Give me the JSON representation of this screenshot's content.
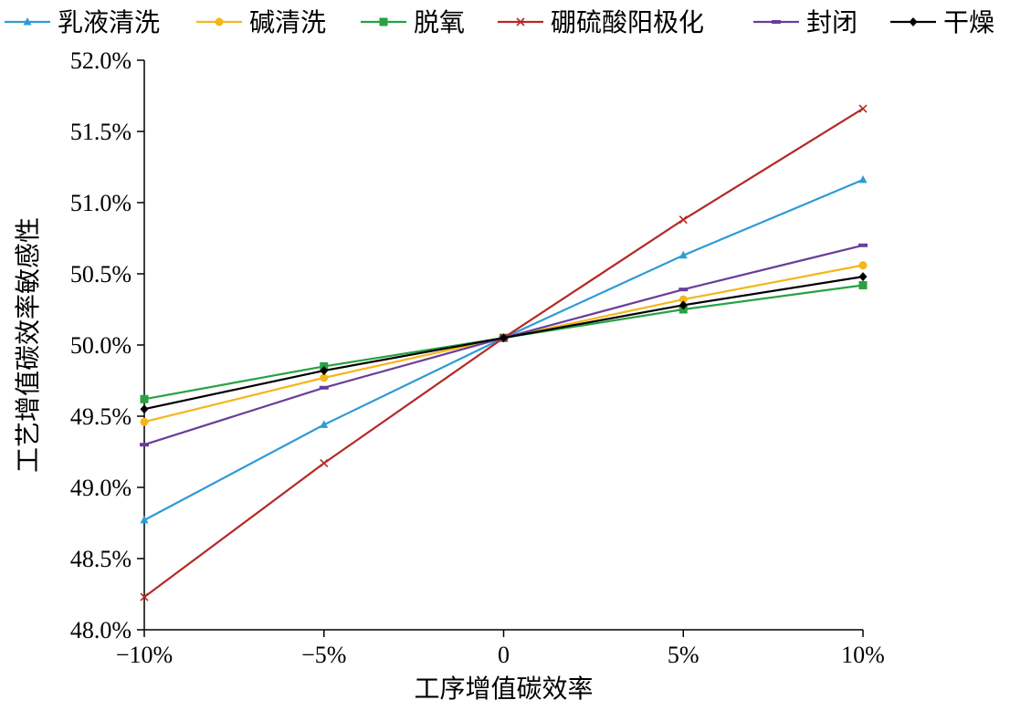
{
  "chart_data": {
    "type": "line",
    "title": "",
    "xlabel": "工序增值碳效率",
    "ylabel": "工艺增值碳效率敏感性",
    "categories": [
      "−10%",
      "−5%",
      "0",
      "5%",
      "10%"
    ],
    "x": [
      -10,
      -5,
      0,
      5,
      10
    ],
    "ylim": [
      48.0,
      52.0
    ],
    "yticks": [
      48.0,
      48.5,
      49.0,
      49.5,
      50.0,
      50.5,
      51.0,
      51.5,
      52.0
    ],
    "ytick_labels": [
      "48.0%",
      "48.5%",
      "49.0%",
      "49.5%",
      "50.0%",
      "50.5%",
      "51.0%",
      "51.5%",
      "52.0%"
    ],
    "grid": false,
    "legend_position": "top",
    "series": [
      {
        "name": "乳液清洗",
        "color": "#2E9BD6",
        "marker": "triangle",
        "values": [
          48.77,
          49.44,
          50.05,
          50.63,
          51.16
        ]
      },
      {
        "name": "碱清洗",
        "color": "#F4B619",
        "marker": "circle",
        "values": [
          49.46,
          49.77,
          50.05,
          50.32,
          50.56
        ]
      },
      {
        "name": "脱氧",
        "color": "#27A243",
        "marker": "square",
        "values": [
          49.62,
          49.85,
          50.05,
          50.25,
          50.42
        ]
      },
      {
        "name": "硼硫酸阳极化",
        "color": "#B42A25",
        "marker": "x",
        "values": [
          48.23,
          49.17,
          50.05,
          50.88,
          51.66
        ]
      },
      {
        "name": "封闭",
        "color": "#6A3D9A",
        "marker": "dash",
        "values": [
          49.3,
          49.7,
          50.05,
          50.39,
          50.7
        ]
      },
      {
        "name": "干燥",
        "color": "#000000",
        "marker": "diamond",
        "values": [
          49.55,
          49.82,
          50.05,
          50.28,
          50.48
        ]
      }
    ]
  }
}
